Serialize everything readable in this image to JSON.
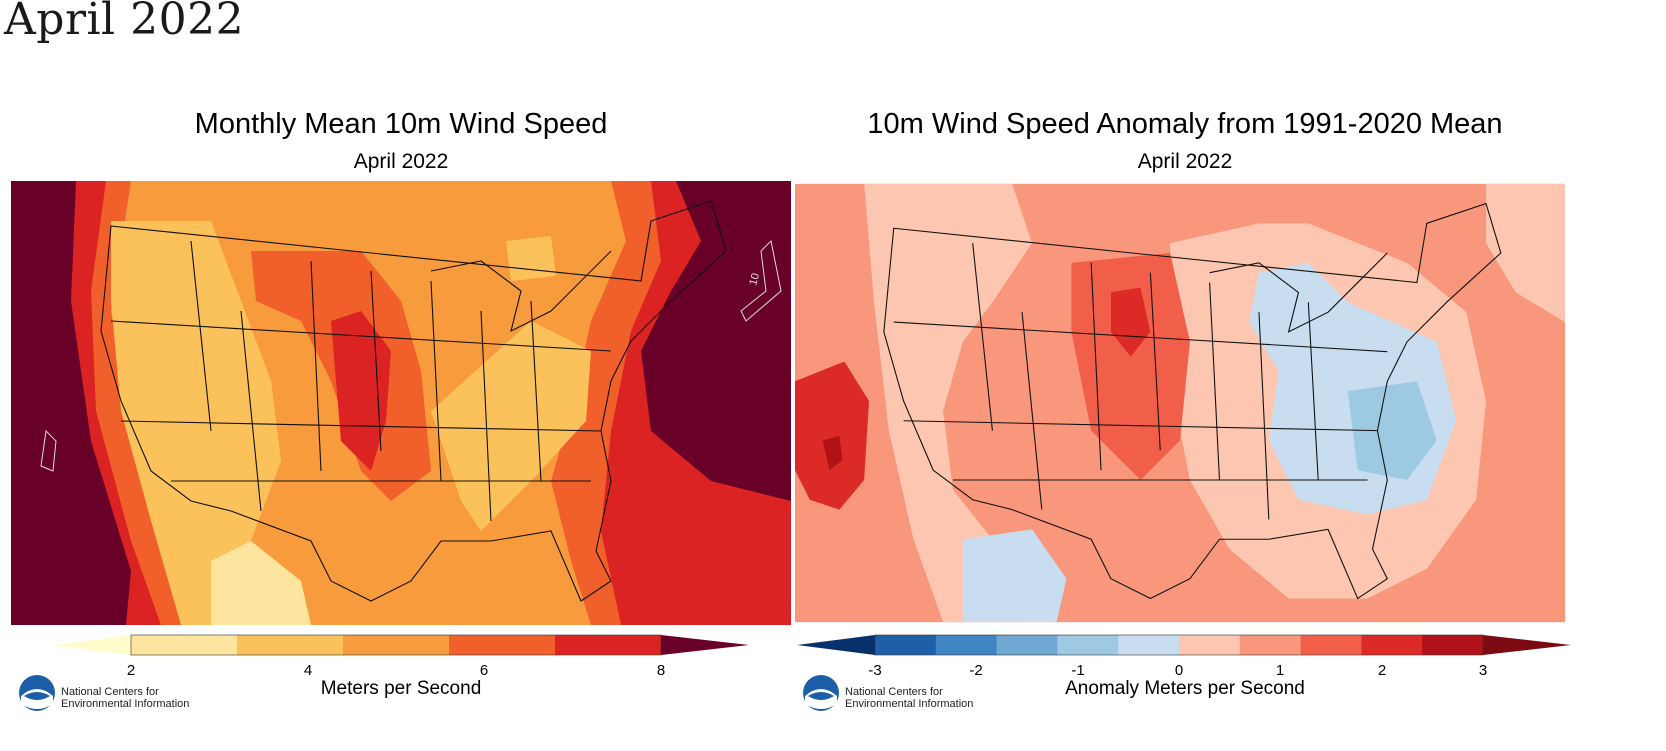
{
  "page": {
    "heading": "April 2022"
  },
  "panels": [
    {
      "title": "Monthly Mean 10m Wind Speed",
      "subtitle": "April 2022",
      "units": "Meters per Second",
      "ticks": [
        "2",
        "4",
        "6",
        "8"
      ],
      "contour_label": "10",
      "colors": [
        "#fffccc",
        "#fde59f",
        "#fbc25c",
        "#f89b3d",
        "#f15f2a",
        "#da2322",
        "#680027"
      ],
      "ncei_line1": "National Centers for",
      "ncei_line2": "Environmental Information"
    },
    {
      "title": "10m Wind Speed Anomaly from 1991-2020 Mean",
      "subtitle": "April 2022",
      "units": "Anomaly Meters per Second",
      "ticks": [
        "-3",
        "-2",
        "-1",
        "0",
        "1",
        "2",
        "3"
      ],
      "colors": [
        "#08306b",
        "#1f5fa8",
        "#3f85c3",
        "#6fa9d3",
        "#9ec9e3",
        "#c8ddef",
        "#fcc6b0",
        "#f8977b",
        "#f15f4a",
        "#dc2b26",
        "#b01217",
        "#7d0a12"
      ],
      "ncei_line1": "National Centers for",
      "ncei_line2": "Environmental Information"
    }
  ]
}
